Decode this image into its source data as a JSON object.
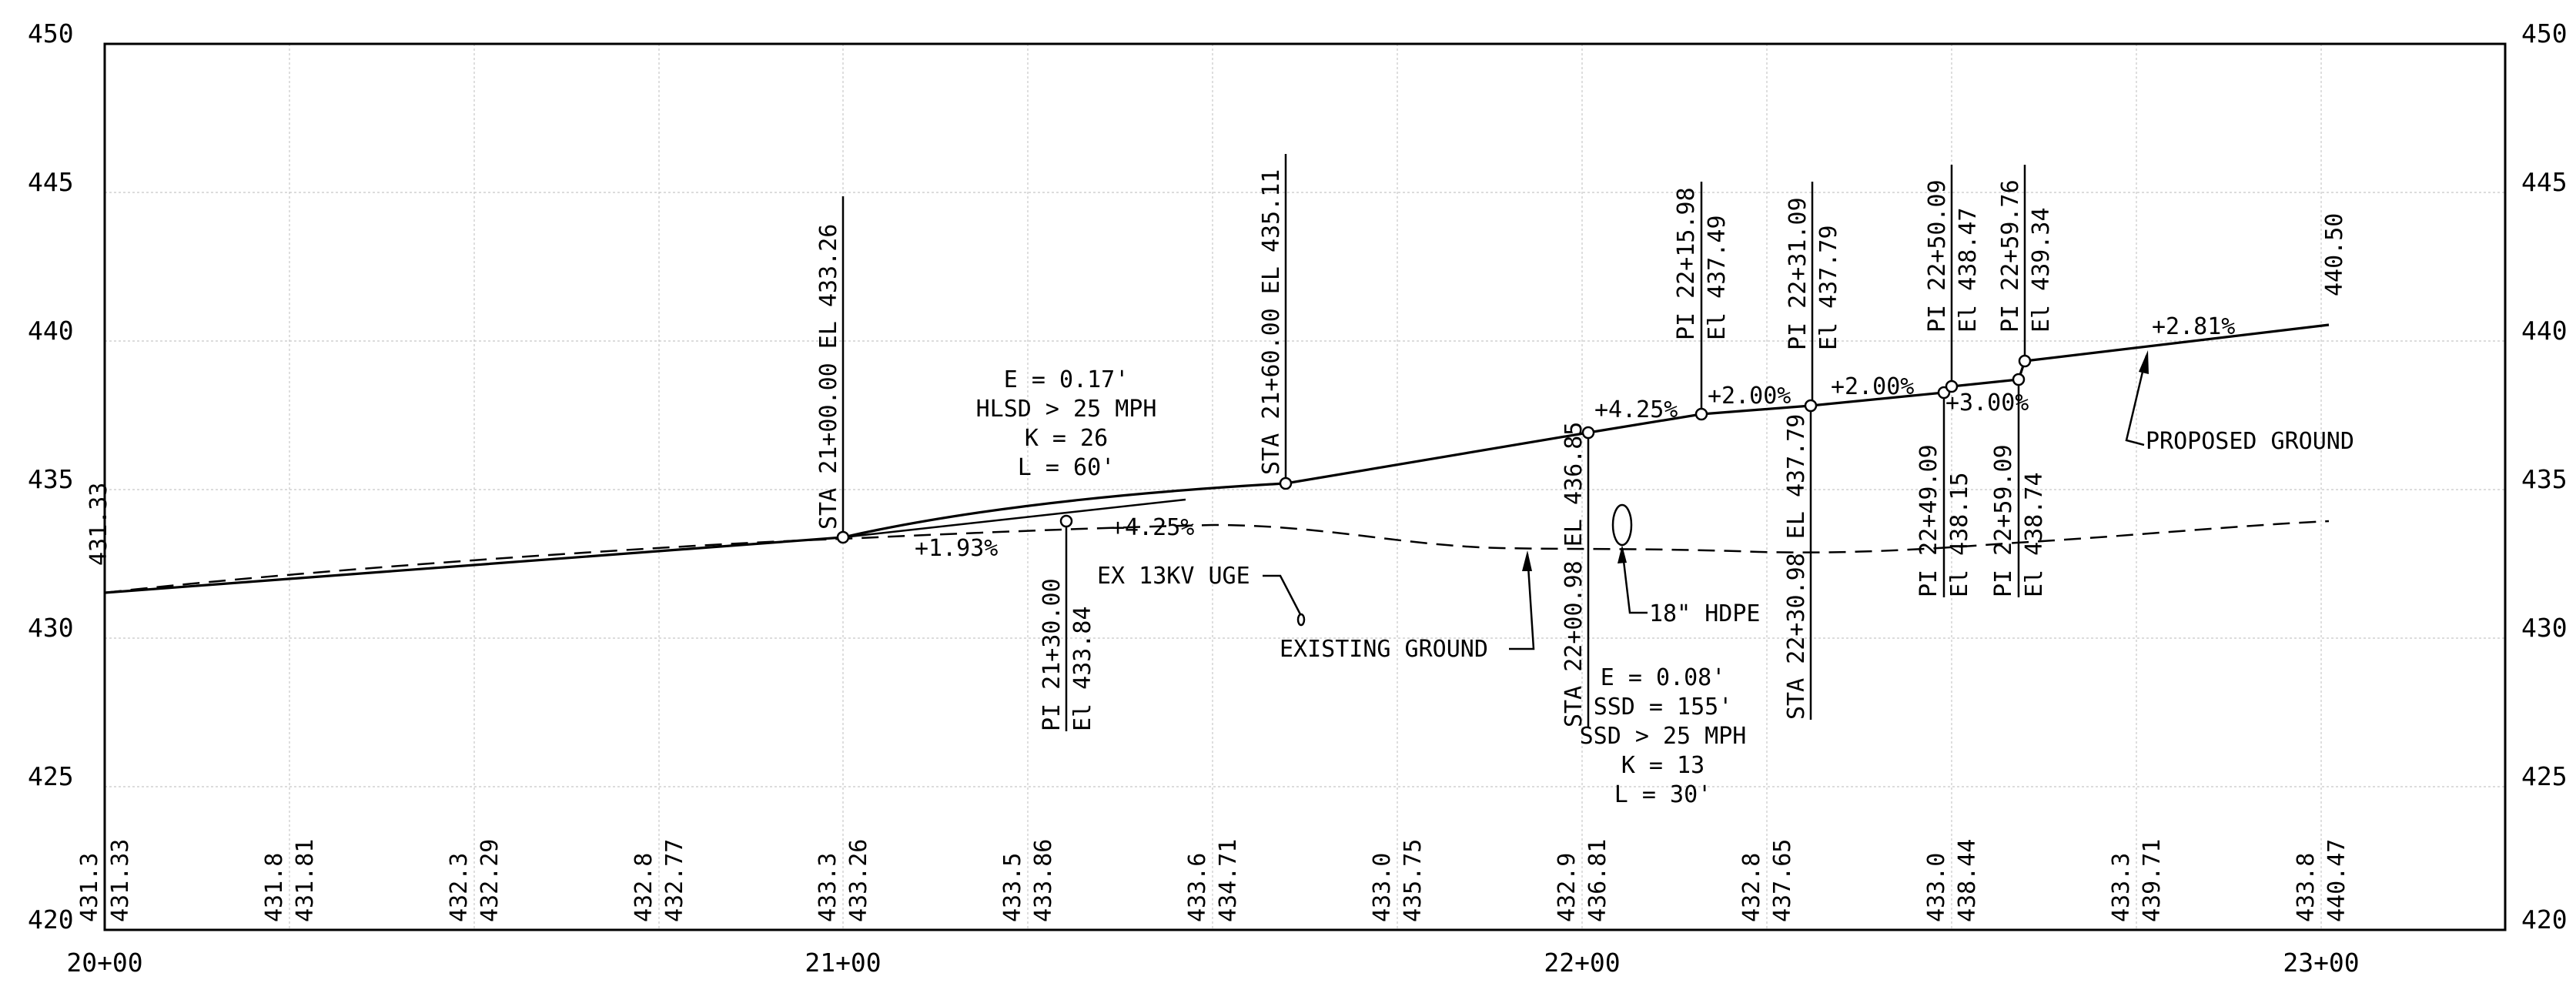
{
  "axes": {
    "y_labels": [
      "450",
      "445",
      "440",
      "435",
      "430",
      "425",
      "420"
    ],
    "x_labels": [
      "20+00",
      "21+00",
      "22+00",
      "23+00"
    ]
  },
  "bottom_elevations": [
    {
      "existing": "431.3",
      "proposed": "431.33"
    },
    {
      "existing": "431.8",
      "proposed": "431.81"
    },
    {
      "existing": "432.3",
      "proposed": "432.29"
    },
    {
      "existing": "432.8",
      "proposed": "432.77"
    },
    {
      "existing": "433.3",
      "proposed": "433.26"
    },
    {
      "existing": "433.5",
      "proposed": "433.86"
    },
    {
      "existing": "433.6",
      "proposed": "434.71"
    },
    {
      "existing": "433.0",
      "proposed": "435.75"
    },
    {
      "existing": "432.9",
      "proposed": "436.81"
    },
    {
      "existing": "432.8",
      "proposed": "437.65"
    },
    {
      "existing": "433.0",
      "proposed": "438.44"
    },
    {
      "existing": "433.3",
      "proposed": "439.71"
    },
    {
      "existing": "433.8",
      "proposed": "440.47"
    }
  ],
  "labels": {
    "start_elev": "431.33",
    "end_elev": "440.50",
    "sta_2100": "STA 21+00.00 EL 433.26",
    "pi_2130_a": "PI 21+30.00",
    "pi_2130_b": "El  433.84",
    "sta_2160": "STA 21+60.00 EL 435.11",
    "sta_2200": "STA 22+00.98 EL 436.85",
    "pi_2215_a": "PI 22+15.98",
    "pi_2215_b": "El  437.49",
    "sta_2230": "STA 22+30.98 EL 437.79",
    "pi_2231_a": "PI 22+31.09",
    "pi_2231_b": "El  437.79",
    "pi_2249_a": "PI 22+49.09",
    "pi_2249_b": "El  438.15",
    "pi_2250_a": "PI 22+50.09",
    "pi_2250_b": "El  438.47",
    "pi_2259a_a": "PI 22+59.09",
    "pi_2259a_b": "El  438.74",
    "pi_2259b_a": "PI 22+59.76",
    "pi_2259b_b": "El  439.34",
    "grade_193": "+1.93%",
    "grade_425a": "+4.25%",
    "grade_425b": "+4.25%",
    "grade_200a": "+2.00%",
    "grade_200b": "+2.00%",
    "grade_300": "+3.00%",
    "grade_281": "+2.81%",
    "curve1_e": "E = 0.17'",
    "curve1_hlsd": "HLSD > 25 MPH",
    "curve1_k": "K = 26",
    "curve1_l": "L = 60'",
    "curve2_e": "E = 0.08'",
    "curve2_ssd": "SSD = 155'",
    "curve2_ssdmph": "SSD > 25 MPH",
    "curve2_k": "K = 13",
    "curve2_l": "L = 30'",
    "ex_utility": "EX 13KV UGE",
    "existing_ground": "EXISTING GROUND",
    "hdpe": "18\" HDPE",
    "proposed_ground": "PROPOSED GROUND"
  }
}
